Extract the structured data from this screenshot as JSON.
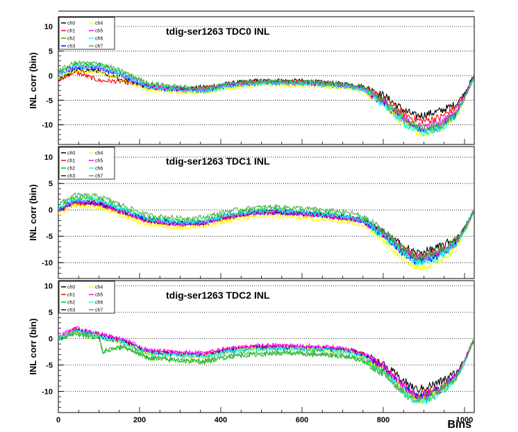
{
  "chart_data": [
    {
      "type": "line",
      "title": "tdig-ser1263 TDC0 INL",
      "ylabel": "INL corr (bin)",
      "xlabel": "",
      "xlim": [
        0,
        1024
      ],
      "ylim": [
        -14,
        12
      ],
      "yticks": [
        10,
        5,
        0,
        -5,
        -10
      ],
      "xticks": [],
      "grid": "horizontal dotted",
      "legend_position": "top-left",
      "x": [
        0,
        40,
        100,
        160,
        220,
        300,
        360,
        420,
        480,
        540,
        600,
        660,
        720,
        750,
        800,
        850,
        880,
        900,
        940,
        980,
        1000,
        1020
      ],
      "series": [
        {
          "name": "ch0",
          "color": "#000000",
          "values": [
            -1,
            1,
            1,
            -1,
            -2.3,
            -2.6,
            -2.4,
            -1.6,
            -1.1,
            -1.0,
            -1.1,
            -1.4,
            -1.8,
            -2.2,
            -4.0,
            -7.0,
            -8.2,
            -8.0,
            -7.2,
            -5.8,
            -3.5,
            -0.5
          ]
        },
        {
          "name": "ch1",
          "color": "#ff0000",
          "values": [
            -1,
            0.8,
            -1,
            -1.2,
            -2.4,
            -2.8,
            -2.6,
            -1.8,
            -1.3,
            -1.2,
            -1.3,
            -1.6,
            -2.0,
            -2.5,
            -4.6,
            -7.8,
            -9.0,
            -9.2,
            -8.5,
            -6.5,
            -4.0,
            -0.8
          ]
        },
        {
          "name": "ch2",
          "color": "#00c000",
          "values": [
            0.5,
            2.3,
            2.2,
            0.5,
            -1.8,
            -2.6,
            -2.8,
            -1.8,
            -1.3,
            -1.3,
            -1.4,
            -1.7,
            -2.1,
            -2.6,
            -5.2,
            -8.8,
            -10.5,
            -11.0,
            -10.3,
            -7.8,
            -4.5,
            -0.8
          ]
        },
        {
          "name": "ch3",
          "color": "#0000ff",
          "values": [
            0,
            1.6,
            1.5,
            -0.2,
            -2.3,
            -3.0,
            -3.2,
            -2.1,
            -1.6,
            -1.5,
            -1.6,
            -1.9,
            -2.3,
            -2.8,
            -5.5,
            -9.2,
            -10.8,
            -11.2,
            -10.6,
            -7.6,
            -4.4,
            -0.8
          ]
        },
        {
          "name": "ch4",
          "color": "#ffff00",
          "values": [
            -0.5,
            1.0,
            0.8,
            -0.9,
            -2.9,
            -3.4,
            -3.5,
            -2.4,
            -2.0,
            -1.9,
            -2.0,
            -2.3,
            -2.7,
            -3.2,
            -6.0,
            -9.8,
            -11.4,
            -11.8,
            -11.0,
            -8.2,
            -4.8,
            -1.0
          ]
        },
        {
          "name": "ch5",
          "color": "#ff00ff",
          "values": [
            0.2,
            1.8,
            1.6,
            0,
            -2.1,
            -2.8,
            -2.9,
            -1.9,
            -1.4,
            -1.4,
            -1.5,
            -1.8,
            -2.2,
            -2.7,
            -5.3,
            -9.0,
            -10.2,
            -10.4,
            -9.6,
            -7.3,
            -4.2,
            -0.8
          ]
        },
        {
          "name": "ch6",
          "color": "#00ffff",
          "values": [
            0,
            1.9,
            1.8,
            0.2,
            -2.2,
            -3.0,
            -3.2,
            -2.2,
            -1.6,
            -1.5,
            -1.6,
            -1.9,
            -2.3,
            -2.9,
            -5.8,
            -9.6,
            -11.2,
            -11.6,
            -10.8,
            -8.0,
            -4.6,
            -0.9
          ]
        },
        {
          "name": "ch7",
          "color": "#4caf50",
          "values": [
            1.0,
            2.6,
            2.5,
            0.8,
            -1.5,
            -2.3,
            -2.6,
            -1.6,
            -1.1,
            -1.1,
            -1.2,
            -1.5,
            -1.9,
            -2.4,
            -5.0,
            -8.6,
            -10.2,
            -10.6,
            -10.0,
            -7.8,
            -4.6,
            -0.8
          ]
        }
      ]
    },
    {
      "type": "line",
      "title": "tdig-ser1263 TDC1 INL",
      "ylabel": "INL corr (bin)",
      "xlabel": "",
      "xlim": [
        0,
        1024
      ],
      "ylim": [
        -13,
        12
      ],
      "yticks": [
        10,
        5,
        0,
        -5,
        -10
      ],
      "xticks": [],
      "grid": "horizontal dotted",
      "legend_position": "top-left",
      "x": [
        0,
        40,
        100,
        160,
        220,
        300,
        360,
        420,
        480,
        540,
        600,
        660,
        720,
        750,
        800,
        850,
        880,
        900,
        940,
        980,
        1000,
        1020
      ],
      "series": [
        {
          "name": "ch0",
          "color": "#000000",
          "values": [
            0,
            1.5,
            1.2,
            -0.5,
            -2.0,
            -2.6,
            -2.4,
            -1.2,
            -0.5,
            -0.3,
            -0.6,
            -1.0,
            -1.5,
            -2.0,
            -4.2,
            -7.0,
            -8.2,
            -8.0,
            -7.0,
            -5.5,
            -3.5,
            -0.6
          ]
        },
        {
          "name": "ch1",
          "color": "#ff0000",
          "values": [
            -0.2,
            1.3,
            1.0,
            -0.6,
            -2.2,
            -2.8,
            -2.6,
            -1.4,
            -0.7,
            -0.5,
            -0.8,
            -1.2,
            -1.7,
            -2.2,
            -4.6,
            -7.6,
            -8.8,
            -8.8,
            -7.8,
            -6.0,
            -3.8,
            -0.7
          ]
        },
        {
          "name": "ch2",
          "color": "#00c000",
          "values": [
            0.5,
            2.2,
            2.0,
            0.2,
            -1.6,
            -2.2,
            -2.0,
            -0.8,
            -0.2,
            0,
            -0.3,
            -0.7,
            -1.2,
            -1.8,
            -4.5,
            -7.8,
            -9.2,
            -9.2,
            -8.2,
            -6.2,
            -3.8,
            -0.6
          ]
        },
        {
          "name": "ch3",
          "color": "#0000ff",
          "values": [
            0,
            1.7,
            1.4,
            -0.3,
            -1.9,
            -2.6,
            -2.4,
            -1.2,
            -0.6,
            -0.4,
            -0.7,
            -1.1,
            -1.6,
            -2.1,
            -4.8,
            -8.2,
            -9.6,
            -9.6,
            -8.5,
            -6.4,
            -3.9,
            -0.7
          ]
        },
        {
          "name": "ch4",
          "color": "#ffff00",
          "values": [
            -0.8,
            0.8,
            0.5,
            -1.2,
            -2.8,
            -3.4,
            -3.2,
            -2.0,
            -1.4,
            -1.2,
            -1.5,
            -1.9,
            -2.4,
            -2.9,
            -5.6,
            -9.2,
            -10.8,
            -10.8,
            -9.6,
            -7.0,
            -4.4,
            -1.0
          ]
        },
        {
          "name": "ch5",
          "color": "#ff00ff",
          "values": [
            0,
            1.6,
            1.4,
            -0.3,
            -2.0,
            -2.6,
            -2.4,
            -1.2,
            -0.6,
            -0.4,
            -0.7,
            -1.1,
            -1.6,
            -2.1,
            -4.6,
            -7.8,
            -9.0,
            -9.0,
            -8.0,
            -6.1,
            -3.8,
            -0.7
          ]
        },
        {
          "name": "ch6",
          "color": "#00ffff",
          "values": [
            0.3,
            2.0,
            1.8,
            0,
            -1.8,
            -2.4,
            -2.2,
            -1.0,
            -0.4,
            -0.2,
            -0.5,
            -0.9,
            -1.4,
            -2.0,
            -4.9,
            -8.4,
            -9.9,
            -9.9,
            -8.8,
            -6.6,
            -4.0,
            -0.8
          ]
        },
        {
          "name": "ch7",
          "color": "#4caf50",
          "values": [
            1.0,
            2.8,
            2.6,
            0.8,
            -1.0,
            -1.6,
            -1.4,
            -0.2,
            0.4,
            0.6,
            0.3,
            -0.1,
            -0.6,
            -1.2,
            -4.0,
            -7.4,
            -8.8,
            -8.8,
            -7.8,
            -5.8,
            -3.5,
            -0.5
          ]
        }
      ]
    },
    {
      "type": "line",
      "title": "tdig-ser1263 TDC2 INL",
      "ylabel": "INL corr (bin)",
      "xlabel": "Bins",
      "xlim": [
        0,
        1024
      ],
      "ylim": [
        -14,
        11
      ],
      "yticks": [
        10,
        5,
        0,
        -5,
        -10
      ],
      "xticks": [
        0,
        200,
        400,
        600,
        800,
        1000
      ],
      "grid": "horizontal dotted",
      "legend_position": "top-left",
      "x": [
        0,
        40,
        100,
        110,
        160,
        220,
        300,
        360,
        420,
        480,
        540,
        600,
        660,
        720,
        750,
        800,
        850,
        880,
        900,
        940,
        980,
        1000,
        1020
      ],
      "series": [
        {
          "name": "ch0",
          "color": "#000000",
          "values": [
            0,
            1.5,
            0.5,
            0.2,
            -0.6,
            -2.6,
            -3.0,
            -3.2,
            -2.2,
            -1.8,
            -1.7,
            -1.8,
            -2.0,
            -2.3,
            -3.0,
            -5.0,
            -8.0,
            -9.6,
            -9.4,
            -8.2,
            -6.5,
            -4.0,
            -0.5
          ]
        },
        {
          "name": "ch1",
          "color": "#ff0000",
          "values": [
            0,
            1.8,
            0.8,
            0.5,
            -0.4,
            -2.4,
            -2.8,
            -3.0,
            -2.0,
            -1.6,
            -1.5,
            -1.6,
            -1.8,
            -2.2,
            -3.0,
            -5.4,
            -8.8,
            -10.6,
            -10.6,
            -9.2,
            -7.0,
            -4.2,
            -0.6
          ]
        },
        {
          "name": "ch2",
          "color": "#00c000",
          "values": [
            0,
            1.0,
            0.0,
            -2.5,
            -1.5,
            -3.6,
            -4.2,
            -4.4,
            -3.4,
            -3.0,
            -2.8,
            -2.9,
            -3.1,
            -3.5,
            -4.2,
            -6.4,
            -9.6,
            -11.0,
            -10.8,
            -9.4,
            -7.2,
            -4.4,
            -0.6
          ]
        },
        {
          "name": "ch3",
          "color": "#0000ff",
          "values": [
            0,
            1.6,
            0.6,
            0.3,
            -0.5,
            -2.5,
            -3.0,
            -3.2,
            -2.2,
            -1.7,
            -1.6,
            -1.7,
            -1.9,
            -2.3,
            -3.1,
            -5.6,
            -9.2,
            -11.0,
            -11.0,
            -9.6,
            -7.2,
            -4.3,
            -0.6
          ]
        },
        {
          "name": "ch4",
          "color": "#ffff00",
          "values": [
            0,
            1.4,
            0.4,
            0.1,
            -0.8,
            -2.8,
            -3.2,
            -3.4,
            -2.4,
            -2.0,
            -1.9,
            -2.0,
            -2.2,
            -2.6,
            -3.4,
            -6.0,
            -9.8,
            -11.6,
            -11.6,
            -10.0,
            -7.6,
            -4.6,
            -0.8
          ]
        },
        {
          "name": "ch5",
          "color": "#ff00ff",
          "values": [
            0.2,
            2.0,
            1.0,
            0.7,
            -0.2,
            -2.2,
            -2.6,
            -2.8,
            -1.8,
            -1.4,
            -1.3,
            -1.4,
            -1.6,
            -2.0,
            -2.8,
            -5.2,
            -8.8,
            -10.6,
            -10.8,
            -9.4,
            -7.0,
            -4.2,
            -0.6
          ]
        },
        {
          "name": "ch6",
          "color": "#00ffff",
          "values": [
            0,
            1.5,
            0.5,
            0.2,
            -0.7,
            -2.7,
            -3.2,
            -3.4,
            -2.4,
            -2.0,
            -1.9,
            -2.0,
            -2.2,
            -2.6,
            -3.4,
            -6.2,
            -10.0,
            -11.8,
            -12.0,
            -10.4,
            -7.8,
            -4.6,
            -0.8
          ]
        },
        {
          "name": "ch7",
          "color": "#4caf50",
          "values": [
            0,
            1.0,
            0.0,
            -2.4,
            -1.4,
            -3.5,
            -4.0,
            -4.2,
            -3.2,
            -2.8,
            -2.6,
            -2.7,
            -2.9,
            -3.3,
            -4.0,
            -6.6,
            -10.2,
            -11.8,
            -11.8,
            -10.0,
            -7.4,
            -4.4,
            -0.6
          ]
        }
      ]
    }
  ]
}
